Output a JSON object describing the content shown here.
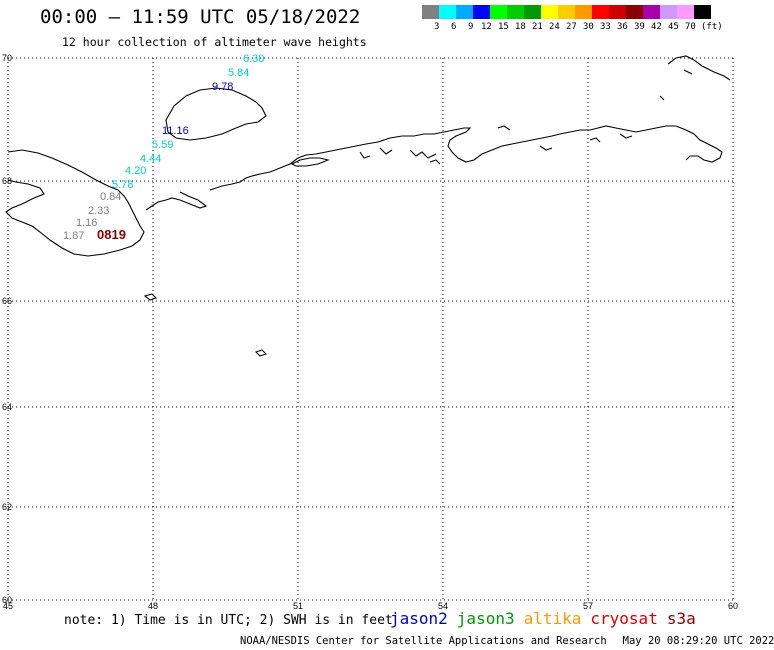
{
  "header": {
    "title": "00:00 – 11:59 UTC 05/18/2022",
    "subtitle": "12 hour collection of altimeter wave heights"
  },
  "colorbar": {
    "colors": [
      "#808080",
      "#00ffff",
      "#00aaff",
      "#0000ff",
      "#00ff00",
      "#00cc00",
      "#009900",
      "#ffff00",
      "#ffcc00",
      "#ff9900",
      "#ff0000",
      "#cc0000",
      "#880000",
      "#aa00aa",
      "#cc99ff",
      "#ff99ff",
      "#000000"
    ],
    "labels": [
      "3",
      "6",
      "9",
      "12",
      "15",
      "18",
      "21",
      "24",
      "27",
      "30",
      "33",
      "36",
      "39",
      "42",
      "45",
      "70",
      "(ft)"
    ]
  },
  "axes": {
    "lat_labels": [
      "70",
      "68",
      "66",
      "64",
      "62",
      "60"
    ],
    "lon_labels": [
      "45",
      "48",
      "51",
      "54",
      "57",
      "60"
    ]
  },
  "observations": [
    {
      "text": "6.30",
      "color": "#00cccc"
    },
    {
      "text": "5.84",
      "color": "#00cccc"
    },
    {
      "text": "9.78",
      "color": "#0000cc"
    },
    {
      "text": "11.16",
      "color": "#0000cc"
    },
    {
      "text": "5.59",
      "color": "#00cccc"
    },
    {
      "text": "4.44",
      "color": "#00cccc"
    },
    {
      "text": "4.20",
      "color": "#00cccc"
    },
    {
      "text": "5.78",
      "color": "#00cccc"
    },
    {
      "text": "0.84",
      "color": "#808080"
    },
    {
      "text": "2.33",
      "color": "#808080"
    },
    {
      "text": "1.16",
      "color": "#808080"
    },
    {
      "text": "1.87",
      "color": "#808080"
    },
    {
      "text": "0819",
      "color": "#880000"
    }
  ],
  "footer": {
    "note": "note: 1) Time is in UTC; 2) SWH is in feet",
    "credit": "NOAA/NESDIS Center for Satellite Applications and Research",
    "date": "May 20 08:29:20 UTC 2022"
  },
  "legend": [
    {
      "label": "jason2",
      "color": "#0000cc"
    },
    {
      "label": "jason3",
      "color": "#009900"
    },
    {
      "label": "altika",
      "color": "#ff9900"
    },
    {
      "label": "cryosat",
      "color": "#dd0000"
    },
    {
      "label": "s3a",
      "color": "#880000"
    }
  ]
}
